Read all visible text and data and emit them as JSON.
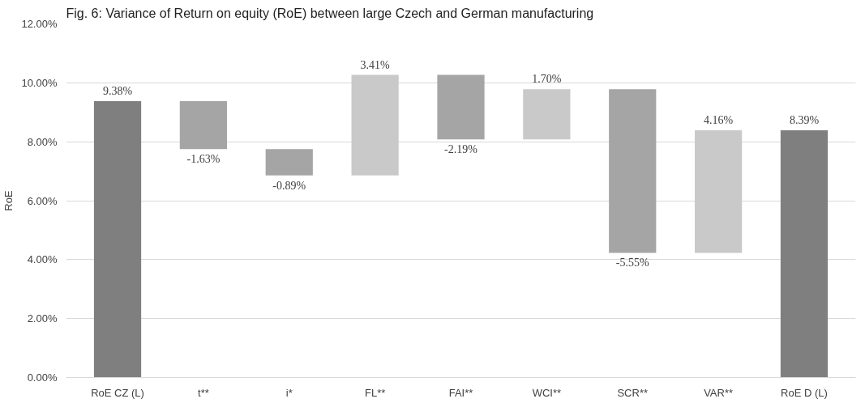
{
  "chart_data": {
    "type": "bar",
    "title": "Fig. 6: Variance of Return on equity (RoE) between large Czech and German manufacturing",
    "ylabel": "RoE",
    "categories": [
      "RoE CZ (L)",
      "t**",
      "i*",
      "FL**",
      "FAI**",
      "WCI**",
      "SCR**",
      "VAR**",
      "RoE D (L)"
    ],
    "values": [
      9.38,
      -1.63,
      -0.89,
      3.41,
      -2.19,
      1.7,
      -5.55,
      4.16,
      8.39
    ],
    "base": [
      0,
      9.38,
      7.75,
      6.86,
      10.27,
      8.08,
      9.78,
      4.23,
      0
    ],
    "colors": [
      "#7f7f7f",
      "#a5a5a5",
      "#a5a5a5",
      "#c9c9c9",
      "#a5a5a5",
      "#c9c9c9",
      "#a5a5a5",
      "#c9c9c9",
      "#7f7f7f"
    ],
    "value_labels": [
      "9.38%",
      "-1.63%",
      "-0.89%",
      "3.41%",
      "-2.19%",
      "1.70%",
      "-5.55%",
      "4.16%",
      "8.39%"
    ],
    "ylim": [
      0,
      12
    ],
    "yticks": [
      {
        "value": 0,
        "label": "0.00%"
      },
      {
        "value": 2,
        "label": "2.00%"
      },
      {
        "value": 4,
        "label": "4.00%"
      },
      {
        "value": 6,
        "label": "6.00%"
      },
      {
        "value": 8,
        "label": "8.00%"
      },
      {
        "value": 10,
        "label": "10.00%"
      },
      {
        "value": 12,
        "label": "12.00%"
      }
    ],
    "grid": "y"
  }
}
